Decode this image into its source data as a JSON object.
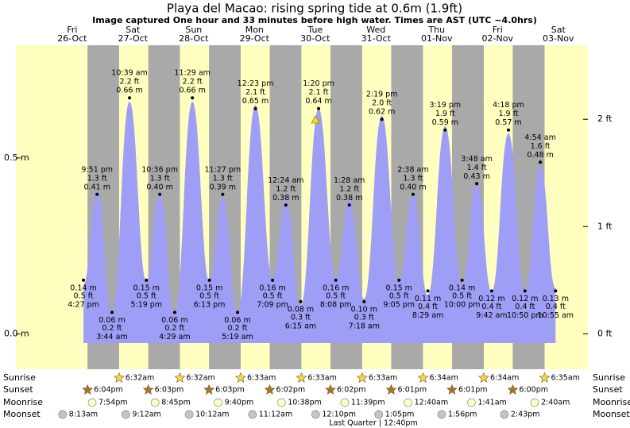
{
  "chart_data": {
    "type": "area",
    "title": "Playa del Macao: rising  spring tide at 0.6m (1.9ft)",
    "subtitle": "Image captured One hour and 33 minutes before high water. Times are AST (UTC −4.0hrs)",
    "days": [
      "Fri",
      "Sat",
      "Sun",
      "Mon",
      "Tue",
      "Wed",
      "Thu",
      "Fri",
      "Sat"
    ],
    "dates": [
      "26-Oct",
      "27-Oct",
      "28-Oct",
      "29-Oct",
      "30-Oct",
      "31-Oct",
      "01-Nov",
      "02-Nov",
      "03-Nov"
    ],
    "x": [
      "26-Oct 16:27",
      "26-Oct 21:51",
      "27-Oct 03:44",
      "27-Oct 10:39",
      "27-Oct 17:19",
      "27-Oct 22:36",
      "28-Oct 04:29",
      "28-Oct 11:29",
      "28-Oct 18:13",
      "28-Oct 23:27",
      "29-Oct 05:19",
      "29-Oct 12:23",
      "29-Oct 19:09",
      "30-Oct 00:24",
      "30-Oct 06:15",
      "30-Oct 13:20",
      "30-Oct 20:08",
      "31-Oct 01:28",
      "31-Oct 07:18",
      "31-Oct 14:19",
      "31-Oct 21:05",
      "01-Nov 02:38",
      "01-Nov 08:29",
      "01-Nov 15:19",
      "01-Nov 22:00",
      "02-Nov 03:48",
      "02-Nov 09:42",
      "02-Nov 16:18",
      "02-Nov 22:50",
      "03-Nov 04:54",
      "03-Nov 10:55"
    ],
    "time_labels": [
      "4:27 pm",
      "9:51 pm",
      "3:44 am",
      "10:39 am",
      "5:19 pm",
      "10:36 pm",
      "4:29 am",
      "11:29 am",
      "6:13 pm",
      "11:27 pm",
      "5:19 am",
      "12:23 pm",
      "7:09 pm",
      "12:24 am",
      "6:15 am",
      "1:20 pm",
      "8:08 pm",
      "1:28 am",
      "7:18 am",
      "2:19 pm",
      "9:05 pm",
      "2:38 am",
      "8:29 am",
      "3:19 pm",
      "10:00 pm",
      "3:48 am",
      "9:42 am",
      "4:18 pm",
      "10:50 pm",
      "4:54 am",
      "10:55 am"
    ],
    "series": [
      {
        "color": "#9e9ef7",
        "values": [
          0.14,
          0.41,
          0.06,
          0.66,
          0.15,
          0.4,
          0.06,
          0.66,
          0.15,
          0.39,
          0.06,
          0.65,
          0.16,
          0.38,
          0.08,
          0.64,
          0.16,
          0.38,
          0.1,
          0.62,
          0.15,
          0.4,
          0.11,
          0.59,
          0.14,
          0.43,
          0.12,
          0.57,
          0.12,
          0.48,
          0.13
        ],
        "value_labels": [
          "0.14 m",
          "0.41 m",
          "0.06 m",
          "0.66 m",
          "0.15 m",
          "0.40 m",
          "0.06 m",
          "0.66 m",
          "0.15 m",
          "0.39 m",
          "0.06 m",
          "0.65 m",
          "0.16 m",
          "0.38 m",
          "0.08 m",
          "0.64 m",
          "0.16 m",
          "0.38 m",
          "0.10 m",
          "0.62 m",
          "0.15 m",
          "0.40 m",
          "0.11 m",
          "0.59 m",
          "0.14 m",
          "0.43 m",
          "0.12 m",
          "0.57 m",
          "0.12 m",
          "0.48 m",
          "0.13 m"
        ]
      },
      {
        "color": "#000000",
        "axis": "y2",
        "values": [
          0.5,
          1.3,
          0.2,
          2.2,
          0.5,
          1.3,
          0.2,
          2.2,
          0.5,
          1.3,
          0.2,
          2.1,
          0.5,
          1.2,
          0.3,
          2.1,
          0.5,
          1.2,
          0.3,
          2.0,
          0.5,
          1.3,
          0.4,
          1.9,
          0.5,
          1.4,
          0.4,
          1.9,
          0.4,
          1.6,
          0.4
        ],
        "value_labels": [
          "0.5 ft",
          "1.3 ft",
          "0.2 ft",
          "2.2 ft",
          "0.5 ft",
          "1.3 ft",
          "0.2 ft",
          "2.2 ft",
          "0.5 ft",
          "1.3 ft",
          "0.2 ft",
          "2.1 ft",
          "0.5 ft",
          "1.2 ft",
          "0.3 ft",
          "2.1 ft",
          "0.5 ft",
          "1.2 ft",
          "0.3 ft",
          "2.0 ft",
          "0.5 ft",
          "1.3 ft",
          "0.4 ft",
          "1.9 ft",
          "0.5 ft",
          "1.4 ft",
          "0.4 ft",
          "1.9 ft",
          "0.4 ft",
          "1.6 ft",
          "0.4 ft"
        ]
      }
    ],
    "ylim": [
      -0.1,
      0.82
    ],
    "yticks": [
      {
        "value": 0.5,
        "label": "0.5 m"
      },
      {
        "value": 0,
        "label": "0.0 m"
      }
    ],
    "y2lim": [
      -0.33,
      2.69
    ],
    "y2ticks": [
      {
        "value": 0,
        "label": "0 ft"
      },
      {
        "value": 1,
        "label": "1 ft"
      },
      {
        "value": 2,
        "label": "2 ft"
      }
    ],
    "day_color": "#ffffc0",
    "night_color": "#a9a9a9",
    "events": [
      {
        "name": "Sunrise",
        "color": "#f2d64b",
        "x": [
          "27-Oct 06:32",
          "28-Oct 06:32",
          "29-Oct 06:33",
          "30-Oct 06:33",
          "31-Oct 06:33",
          "01-Nov 06:34",
          "02-Nov 06:34",
          "03-Nov 06:35"
        ],
        "labels": [
          "6:32am",
          "6:32am",
          "6:33am",
          "6:33am",
          "6:33am",
          "6:34am",
          "6:34am",
          "6:35am"
        ]
      },
      {
        "name": "Sunset",
        "color": "#a0782a",
        "x": [
          "26-Oct 18:04",
          "27-Oct 18:03",
          "28-Oct 18:03",
          "29-Oct 18:02",
          "30-Oct 18:02",
          "31-Oct 18:01",
          "01-Nov 18:01",
          "02-Nov 18:00"
        ],
        "labels": [
          "6:04pm",
          "6:03pm",
          "6:03pm",
          "6:02pm",
          "6:02pm",
          "6:01pm",
          "6:01pm",
          "6:00pm"
        ]
      },
      {
        "name": "Moonrise",
        "color": "#ffffcc",
        "x": [
          "26-Oct 19:54",
          "27-Oct 20:45",
          "28-Oct 21:40",
          "29-Oct 22:38",
          "30-Oct 23:39",
          "01-Nov 00:40",
          "02-Nov 01:41",
          "03-Nov 02:40"
        ],
        "labels": [
          "7:54pm",
          "8:45pm",
          "9:40pm",
          "10:38pm",
          "11:39pm",
          "12:40am",
          "1:41am",
          "2:40am"
        ]
      },
      {
        "name": "Moonset",
        "color": "#c8c4b8",
        "x": [
          "26-Oct 08:13",
          "27-Oct 09:12",
          "28-Oct 10:12",
          "29-Oct 11:12",
          "30-Oct 12:10",
          "31-Oct 13:05",
          "01-Nov 13:56",
          "02-Nov 14:43"
        ],
        "labels": [
          "8:13am",
          "9:12am",
          "10:12am",
          "11:12am",
          "12:10pm",
          "1:05pm",
          "1:56pm",
          "2:43pm"
        ]
      }
    ],
    "moon_phase": "Last Quarter | 12:40pm"
  }
}
